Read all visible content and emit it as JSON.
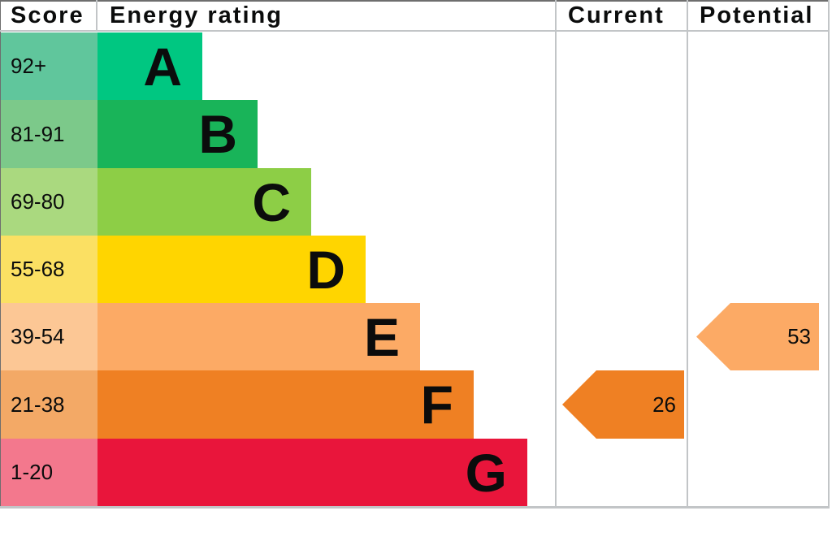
{
  "header": {
    "score": "Score",
    "energy_rating": "Energy rating",
    "current": "Current",
    "potential": "Potential"
  },
  "bands": [
    {
      "letter": "A",
      "score": "92+",
      "color": "#00c781",
      "score_bg": "#60c69c"
    },
    {
      "letter": "B",
      "score": "81-91",
      "color": "#19b459",
      "score_bg": "#7cc98a"
    },
    {
      "letter": "C",
      "score": "69-80",
      "color": "#8dce46",
      "score_bg": "#aad97f"
    },
    {
      "letter": "D",
      "score": "55-68",
      "color": "#ffd500",
      "score_bg": "#fbe063"
    },
    {
      "letter": "E",
      "score": "39-54",
      "color": "#fcaa65",
      "score_bg": "#fcc795"
    },
    {
      "letter": "F",
      "score": "21-38",
      "color": "#ef8023",
      "score_bg": "#f3a966"
    },
    {
      "letter": "G",
      "score": "1-20",
      "color": "#e9153b",
      "score_bg": "#f3788d"
    }
  ],
  "markers": {
    "current": {
      "label": "26",
      "band_index": 5,
      "color": "#ef8023"
    },
    "potential": {
      "label": "53",
      "band_index": 4,
      "color": "#fcaa65"
    }
  },
  "colors": {
    "text": "#0b0c0c",
    "grid": "#c2c5c7",
    "frame": "#6e6e6e"
  },
  "chart_data": {
    "type": "bar",
    "title": "Energy rating",
    "categories": [
      "A",
      "B",
      "C",
      "D",
      "E",
      "F",
      "G"
    ],
    "score_ranges": [
      "92+",
      "81-91",
      "69-80",
      "55-68",
      "39-54",
      "21-38",
      "1-20"
    ],
    "band_colors": [
      "#00c781",
      "#19b459",
      "#8dce46",
      "#ffd500",
      "#fcaa65",
      "#ef8023",
      "#e9153b"
    ],
    "columns": [
      "Score",
      "Energy rating",
      "Current",
      "Potential"
    ],
    "current": {
      "value": 26,
      "band": "F",
      "band_range": "21-38"
    },
    "potential": {
      "value": 53,
      "band": "E",
      "band_range": "39-54"
    }
  }
}
